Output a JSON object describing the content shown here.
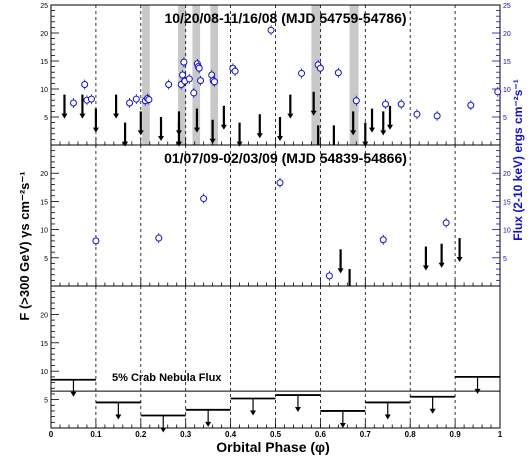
{
  "figure": {
    "y_axis_left_label": "F (>300 GeV) γs cm⁻²s⁻¹",
    "y_axis_right_label": "Flux (2-10 keV) ergs cm⁻²s⁻¹",
    "x_axis_label": "Orbital Phase (φ)"
  },
  "chart_data": [
    {
      "type": "scatter",
      "panel": "top",
      "title": "10/20/08-11/16/08 (MJD 54759-54786)",
      "xlim": [
        0,
        1
      ],
      "ylim_left": [
        0,
        25
      ],
      "ylim_right": [
        0,
        25
      ],
      "left_ticks": [
        5,
        10,
        15,
        20,
        25
      ],
      "right_ticks": [
        5,
        10,
        15,
        20,
        25
      ],
      "x_ticks": [
        0.1,
        0.2,
        0.3,
        0.4,
        0.5,
        0.6,
        0.7,
        0.8,
        0.9
      ],
      "grid": "vertical dashed at each 0.1",
      "shaded_phase_bands": [
        [
          0.203,
          0.22
        ],
        [
          0.283,
          0.3
        ],
        [
          0.315,
          0.332
        ],
        [
          0.355,
          0.372
        ],
        [
          0.58,
          0.6
        ],
        [
          0.665,
          0.685
        ]
      ],
      "series": [
        {
          "style": "blue open circles with error bars",
          "color": "#1010c8",
          "points": [
            {
              "x": 0.05,
              "y": 7.5
            },
            {
              "x": 0.075,
              "y": 10.8
            },
            {
              "x": 0.08,
              "y": 8.0
            },
            {
              "x": 0.09,
              "y": 8.2
            },
            {
              "x": 0.175,
              "y": 7.5
            },
            {
              "x": 0.19,
              "y": 8.2
            },
            {
              "x": 0.21,
              "y": 7.9
            },
            {
              "x": 0.215,
              "y": 8.3
            },
            {
              "x": 0.218,
              "y": 8.1
            },
            {
              "x": 0.262,
              "y": 10.8
            },
            {
              "x": 0.29,
              "y": 10.8
            },
            {
              "x": 0.293,
              "y": 12.5
            },
            {
              "x": 0.296,
              "y": 14.8
            },
            {
              "x": 0.298,
              "y": 11.4
            },
            {
              "x": 0.308,
              "y": 11.8
            },
            {
              "x": 0.318,
              "y": 9.3
            },
            {
              "x": 0.326,
              "y": 14.5
            },
            {
              "x": 0.328,
              "y": 14.0
            },
            {
              "x": 0.33,
              "y": 13.7
            },
            {
              "x": 0.333,
              "y": 11.5
            },
            {
              "x": 0.358,
              "y": 12.5
            },
            {
              "x": 0.361,
              "y": 11.5
            },
            {
              "x": 0.364,
              "y": 11.3
            },
            {
              "x": 0.405,
              "y": 13.7
            },
            {
              "x": 0.41,
              "y": 13.2
            },
            {
              "x": 0.49,
              "y": 20.5
            },
            {
              "x": 0.558,
              "y": 12.8
            },
            {
              "x": 0.595,
              "y": 14.3
            },
            {
              "x": 0.6,
              "y": 13.7
            },
            {
              "x": 0.64,
              "y": 12.9
            },
            {
              "x": 0.68,
              "y": 7.9
            },
            {
              "x": 0.745,
              "y": 7.3
            },
            {
              "x": 0.78,
              "y": 7.3
            },
            {
              "x": 0.815,
              "y": 5.5
            },
            {
              "x": 0.86,
              "y": 5.2
            },
            {
              "x": 0.935,
              "y": 7.1
            },
            {
              "x": 0.995,
              "y": 9.5
            }
          ]
        },
        {
          "style": "black upper-limit arrows",
          "color": "#000000",
          "upper_limits": [
            {
              "x": 0.03,
              "y": 9.0
            },
            {
              "x": 0.07,
              "y": 9.0
            },
            {
              "x": 0.1,
              "y": 6.5
            },
            {
              "x": 0.145,
              "y": 9.0
            },
            {
              "x": 0.165,
              "y": 4.0
            },
            {
              "x": 0.2,
              "y": 6.0
            },
            {
              "x": 0.245,
              "y": 5.0
            },
            {
              "x": 0.285,
              "y": 6.0
            },
            {
              "x": 0.285,
              "y": 4.0
            },
            {
              "x": 0.325,
              "y": 6.5
            },
            {
              "x": 0.36,
              "y": 4.5
            },
            {
              "x": 0.385,
              "y": 7.0
            },
            {
              "x": 0.42,
              "y": 4.0
            },
            {
              "x": 0.465,
              "y": 5.5
            },
            {
              "x": 0.51,
              "y": 5.0
            },
            {
              "x": 0.533,
              "y": 9.0
            },
            {
              "x": 0.585,
              "y": 9.5
            },
            {
              "x": 0.595,
              "y": 3.5
            },
            {
              "x": 0.63,
              "y": 3.5
            },
            {
              "x": 0.673,
              "y": 6.0
            },
            {
              "x": 0.7,
              "y": 4.0
            },
            {
              "x": 0.715,
              "y": 6.5
            },
            {
              "x": 0.74,
              "y": 6.0
            },
            {
              "x": 0.755,
              "y": 7.0
            }
          ]
        }
      ]
    },
    {
      "type": "scatter",
      "panel": "middle",
      "title": "01/07/09-02/03/09 (MJD 54839-54866)",
      "xlim": [
        0,
        1
      ],
      "ylim_left": [
        0,
        25
      ],
      "ylim_right": [
        0,
        25
      ],
      "left_ticks": [
        5,
        10,
        15,
        20
      ],
      "right_ticks": [
        5,
        10,
        15,
        20
      ],
      "x_ticks": [
        0.1,
        0.2,
        0.3,
        0.4,
        0.5,
        0.6,
        0.7,
        0.8,
        0.9
      ],
      "grid": "vertical dashed at each 0.1",
      "series": [
        {
          "style": "blue open circles with error bars",
          "color": "#1010c8",
          "points": [
            {
              "x": 0.1,
              "y": 8.0
            },
            {
              "x": 0.24,
              "y": 8.5
            },
            {
              "x": 0.34,
              "y": 15.5
            },
            {
              "x": 0.51,
              "y": 18.3
            },
            {
              "x": 0.62,
              "y": 1.8
            },
            {
              "x": 0.74,
              "y": 8.2
            },
            {
              "x": 0.88,
              "y": 11.2
            }
          ]
        },
        {
          "style": "black upper-limit arrows",
          "color": "#000000",
          "upper_limits": [
            {
              "x": 0.645,
              "y": 6.5
            },
            {
              "x": 0.665,
              "y": 3.0
            },
            {
              "x": 0.835,
              "y": 7.0
            },
            {
              "x": 0.87,
              "y": 7.5
            },
            {
              "x": 0.91,
              "y": 8.5
            }
          ]
        }
      ]
    },
    {
      "type": "bar",
      "panel": "bottom",
      "xlim": [
        0,
        1
      ],
      "ylim": [
        0,
        25
      ],
      "left_ticks": [
        5,
        10,
        15,
        20
      ],
      "x_ticks": [
        0,
        0.1,
        0.2,
        0.3,
        0.4,
        0.5,
        0.6,
        0.7,
        0.8,
        0.9,
        1
      ],
      "x_tick_labels": [
        "0",
        "0.1",
        "0.2",
        "0.3",
        "0.4",
        "0.5",
        "0.6",
        "0.7",
        "0.8",
        "0.9",
        "1"
      ],
      "grid": "vertical dashed at each 0.1",
      "reference_line": {
        "y": 6.5,
        "label": "5% Crab Nebula Flux"
      },
      "binned_upper_limits": [
        {
          "x0": 0.0,
          "x1": 0.1,
          "y": 8.5
        },
        {
          "x0": 0.1,
          "x1": 0.2,
          "y": 4.5
        },
        {
          "x0": 0.2,
          "x1": 0.3,
          "y": 2.2
        },
        {
          "x0": 0.3,
          "x1": 0.4,
          "y": 3.2
        },
        {
          "x0": 0.4,
          "x1": 0.5,
          "y": 5.2
        },
        {
          "x0": 0.5,
          "x1": 0.6,
          "y": 5.8
        },
        {
          "x0": 0.6,
          "x1": 0.7,
          "y": 3.0
        },
        {
          "x0": 0.7,
          "x1": 0.8,
          "y": 4.5
        },
        {
          "x0": 0.8,
          "x1": 0.9,
          "y": 5.5
        },
        {
          "x0": 0.9,
          "x1": 1.0,
          "y": 9.0
        }
      ]
    }
  ]
}
